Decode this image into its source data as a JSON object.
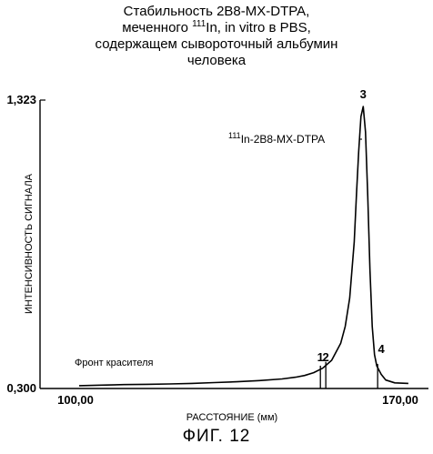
{
  "chart_data": {
    "type": "line",
    "title_lines": [
      "Стабильность 2B8-MX-DTPA,",
      "меченного ¹¹¹In, in vitro в PBS,",
      "содержащем сывороточный альбумин",
      "человека"
    ],
    "title_line2_parts": {
      "before": "меченного ",
      "sup": "111",
      "after": "In, in vitro в PBS,"
    },
    "xlabel": "РАССТОЯНИЕ (мм)",
    "ylabel": "ИНТЕНСИВНОСТЬ СИГНАЛА",
    "x_tick_labels": [
      "100,00",
      "170,00"
    ],
    "y_tick_labels": [
      "0,300",
      "1,323"
    ],
    "xlim": [
      100,
      170
    ],
    "ylim": [
      0.3,
      1.323
    ],
    "series": [
      {
        "x": [
          100,
          105,
          110,
          115,
          120,
          125,
          130,
          135,
          140,
          145,
          148,
          150,
          152,
          154,
          156,
          158,
          159,
          160,
          161,
          161.5,
          162,
          162.5,
          163,
          163.5,
          164,
          164.5,
          165,
          165.5,
          166,
          167,
          168,
          170,
          173
        ],
        "y": [
          0.31,
          0.312,
          0.314,
          0.315,
          0.316,
          0.318,
          0.321,
          0.324,
          0.328,
          0.334,
          0.34,
          0.346,
          0.356,
          0.372,
          0.4,
          0.46,
          0.52,
          0.62,
          0.82,
          0.99,
          1.14,
          1.265,
          1.3,
          1.21,
          0.98,
          0.72,
          0.52,
          0.42,
          0.38,
          0.35,
          0.33,
          0.32,
          0.318
        ]
      }
    ],
    "peak_annotations": [
      {
        "label": "1",
        "x": 153.5
      },
      {
        "label": "2",
        "x": 154.7
      },
      {
        "label": "3",
        "x": 163
      },
      {
        "label": "4",
        "x": 166.2
      }
    ],
    "series_annotation": {
      "sup": "111",
      "text": "In-2B8-MX-DTPA"
    },
    "dye_front_label": "Фронт красителя"
  },
  "caption": "ФИГ. 12"
}
